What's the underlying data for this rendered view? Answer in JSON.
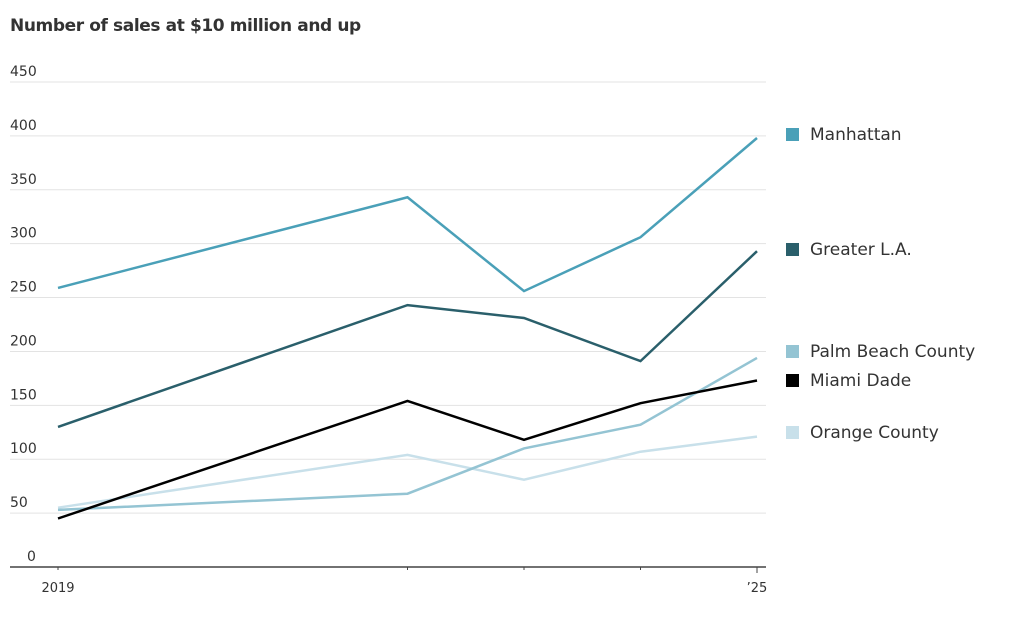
{
  "chart_data": {
    "type": "line",
    "title": "Number of sales at $10 million and up",
    "xlabel": "",
    "ylabel": "",
    "x": [
      2019,
      2022,
      2023,
      2024,
      2025
    ],
    "x_tick_labels": [
      "2019",
      "",
      "",
      "",
      "’25"
    ],
    "ylim": [
      0,
      450
    ],
    "y_ticks": [
      0,
      50,
      100,
      150,
      200,
      250,
      300,
      350,
      400,
      450
    ],
    "grid": true,
    "legend_placement": "right",
    "series": [
      {
        "name": "Manhattan",
        "color": "#4aa0b8",
        "values": [
          259,
          343,
          256,
          306,
          398
        ]
      },
      {
        "name": "Greater L.A.",
        "color": "#2a5f6b",
        "values": [
          130,
          243,
          231,
          191,
          293
        ]
      },
      {
        "name": "Palm Beach County",
        "color": "#94c4d3",
        "values": [
          53,
          68,
          110,
          132,
          194
        ]
      },
      {
        "name": "Miami Dade",
        "color": "#000000",
        "values": [
          45,
          154,
          118,
          152,
          173
        ]
      },
      {
        "name": "Orange County",
        "color": "#c8e0ea",
        "values": [
          55,
          104,
          81,
          107,
          121
        ]
      }
    ]
  }
}
